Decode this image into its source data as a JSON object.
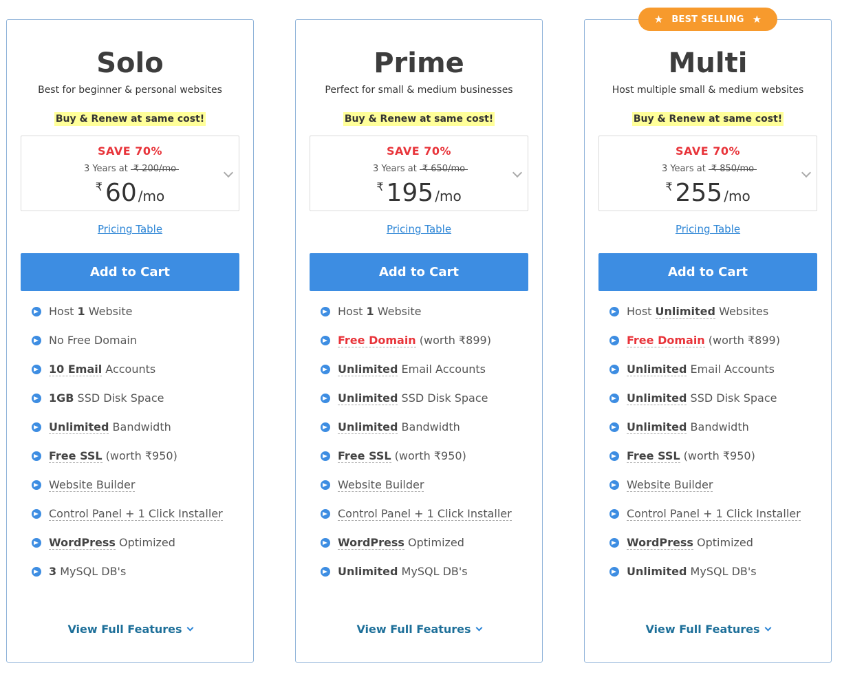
{
  "plans": [
    {
      "name": "Solo",
      "desc": "Best for beginner & personal websites",
      "renew": "Buy & Renew at same cost!",
      "save": "SAVE 70%",
      "years": "3 Years at",
      "old_price": "₹ 200/mo",
      "currency": "₹",
      "price": "60",
      "per": "/mo",
      "pricing_link": "Pricing Table",
      "cart": "Add to Cart",
      "features": [
        [
          [
            "Host ",
            ""
          ],
          [
            "1",
            "b"
          ],
          [
            " Website",
            ""
          ]
        ],
        [
          [
            "No Free Domain",
            ""
          ]
        ],
        [
          [
            "10 Email",
            "bul"
          ],
          [
            " Accounts",
            ""
          ]
        ],
        [
          [
            "1GB",
            "b"
          ],
          [
            " SSD Disk Space",
            ""
          ]
        ],
        [
          [
            "Unlimited",
            "bul"
          ],
          [
            " Bandwidth",
            ""
          ]
        ],
        [
          [
            "Free SSL",
            "bul"
          ],
          [
            " (worth ₹950)",
            ""
          ]
        ],
        [
          [
            "Website Builder",
            "ul"
          ]
        ],
        [
          [
            "Control Panel + 1 Click Installer",
            "ul"
          ]
        ],
        [
          [
            "WordPress",
            "bul"
          ],
          [
            " Optimized",
            ""
          ]
        ],
        [
          [
            "3",
            "b"
          ],
          [
            " MySQL DB's",
            ""
          ]
        ]
      ],
      "view_full": "View Full Features"
    },
    {
      "name": "Prime",
      "desc": "Perfect for small & medium businesses",
      "renew": "Buy & Renew at same cost!",
      "save": "SAVE 70%",
      "years": "3 Years at",
      "old_price": "₹ 650/mo",
      "currency": "₹",
      "price": "195",
      "per": "/mo",
      "pricing_link": "Pricing Table",
      "cart": "Add to Cart",
      "features": [
        [
          [
            "Host ",
            ""
          ],
          [
            "1",
            "b"
          ],
          [
            " Website",
            ""
          ]
        ],
        [
          [
            "Free Domain",
            "red"
          ],
          [
            " (worth ₹899)",
            ""
          ]
        ],
        [
          [
            "Unlimited",
            "bul"
          ],
          [
            " Email Accounts",
            ""
          ]
        ],
        [
          [
            "Unlimited",
            "bul"
          ],
          [
            " SSD Disk Space",
            ""
          ]
        ],
        [
          [
            "Unlimited",
            "bul"
          ],
          [
            " Bandwidth",
            ""
          ]
        ],
        [
          [
            "Free SSL",
            "bul"
          ],
          [
            " (worth ₹950)",
            ""
          ]
        ],
        [
          [
            "Website Builder",
            "ul"
          ]
        ],
        [
          [
            "Control Panel + 1 Click Installer",
            "ul"
          ]
        ],
        [
          [
            "WordPress",
            "bul"
          ],
          [
            " Optimized",
            ""
          ]
        ],
        [
          [
            "Unlimited",
            "b"
          ],
          [
            " MySQL DB's",
            ""
          ]
        ]
      ],
      "view_full": "View Full Features"
    },
    {
      "name": "Multi",
      "badge": "BEST SELLING",
      "desc": "Host multiple small & medium websites",
      "renew": "Buy & Renew at same cost!",
      "save": "SAVE 70%",
      "years": "3 Years at",
      "old_price": "₹ 850/mo",
      "currency": "₹",
      "price": "255",
      "per": "/mo",
      "pricing_link": "Pricing Table",
      "cart": "Add to Cart",
      "features": [
        [
          [
            "Host ",
            ""
          ],
          [
            "Unlimited",
            "bul"
          ],
          [
            " Websites",
            ""
          ]
        ],
        [
          [
            "Free Domain",
            "red"
          ],
          [
            " (worth ₹899)",
            ""
          ]
        ],
        [
          [
            "Unlimited",
            "bul"
          ],
          [
            " Email Accounts",
            ""
          ]
        ],
        [
          [
            "Unlimited",
            "bul"
          ],
          [
            " SSD Disk Space",
            ""
          ]
        ],
        [
          [
            "Unlimited",
            "bul"
          ],
          [
            " Bandwidth",
            ""
          ]
        ],
        [
          [
            "Free SSL",
            "bul"
          ],
          [
            " (worth ₹950)",
            ""
          ]
        ],
        [
          [
            "Website Builder",
            "ul"
          ]
        ],
        [
          [
            "Control Panel + 1 Click Installer",
            "ul"
          ]
        ],
        [
          [
            "WordPress",
            "bul"
          ],
          [
            " Optimized",
            ""
          ]
        ],
        [
          [
            "Unlimited",
            "b"
          ],
          [
            " MySQL DB's",
            ""
          ]
        ]
      ],
      "view_full": "View Full Features"
    }
  ],
  "colors": {
    "accent": "#3d8de2",
    "save_red": "#e8343a",
    "badge_orange": "#f79a2d",
    "highlight_yellow": "#ffff99"
  }
}
